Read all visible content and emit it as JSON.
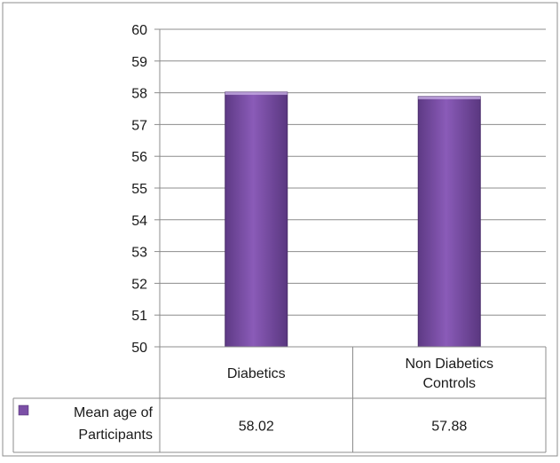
{
  "chart_data": {
    "type": "bar",
    "categories": [
      "Diabetics",
      "Non Diabetics Controls"
    ],
    "category_lines": [
      [
        "Diabetics"
      ],
      [
        "Non Diabetics",
        "Controls"
      ]
    ],
    "series": [
      {
        "name": "Mean age of Participants",
        "name_lines": [
          "Mean age of",
          "Participants"
        ],
        "values": [
          58.02,
          57.88
        ],
        "value_labels": [
          "58.02",
          "57.88"
        ],
        "color": "#7b4fa6"
      }
    ],
    "ylim": [
      50,
      60
    ],
    "yticks": [
      "50",
      "51",
      "52",
      "53",
      "54",
      "55",
      "56",
      "57",
      "58",
      "59",
      "60"
    ],
    "grid": true,
    "legend": "data-table",
    "title": "",
    "xlabel": "",
    "ylabel": ""
  }
}
